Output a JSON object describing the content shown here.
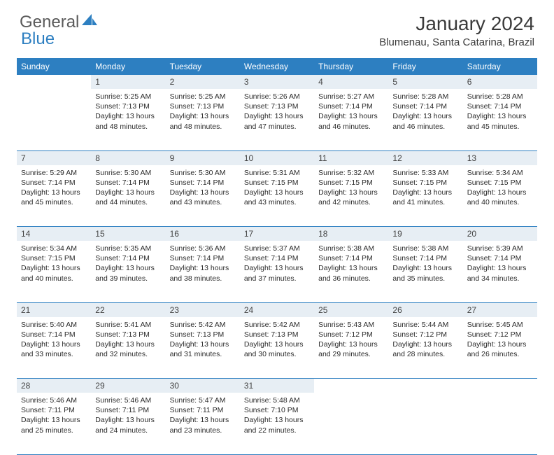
{
  "brand": {
    "general": "General",
    "blue": "Blue"
  },
  "title": "January 2024",
  "location": "Blumenau, Santa Catarina, Brazil",
  "colors": {
    "header_bg": "#2d7fc1",
    "header_text": "#ffffff",
    "daynum_bg": "#e7eef4",
    "row_divider": "#2d7fc1",
    "text": "#2b2b2b"
  },
  "weekdays": [
    "Sunday",
    "Monday",
    "Tuesday",
    "Wednesday",
    "Thursday",
    "Friday",
    "Saturday"
  ],
  "weeks": [
    [
      null,
      {
        "n": "1",
        "sr": "5:25 AM",
        "ss": "7:13 PM",
        "dl": "13 hours and 48 minutes."
      },
      {
        "n": "2",
        "sr": "5:25 AM",
        "ss": "7:13 PM",
        "dl": "13 hours and 48 minutes."
      },
      {
        "n": "3",
        "sr": "5:26 AM",
        "ss": "7:13 PM",
        "dl": "13 hours and 47 minutes."
      },
      {
        "n": "4",
        "sr": "5:27 AM",
        "ss": "7:14 PM",
        "dl": "13 hours and 46 minutes."
      },
      {
        "n": "5",
        "sr": "5:28 AM",
        "ss": "7:14 PM",
        "dl": "13 hours and 46 minutes."
      },
      {
        "n": "6",
        "sr": "5:28 AM",
        "ss": "7:14 PM",
        "dl": "13 hours and 45 minutes."
      }
    ],
    [
      {
        "n": "7",
        "sr": "5:29 AM",
        "ss": "7:14 PM",
        "dl": "13 hours and 45 minutes."
      },
      {
        "n": "8",
        "sr": "5:30 AM",
        "ss": "7:14 PM",
        "dl": "13 hours and 44 minutes."
      },
      {
        "n": "9",
        "sr": "5:30 AM",
        "ss": "7:14 PM",
        "dl": "13 hours and 43 minutes."
      },
      {
        "n": "10",
        "sr": "5:31 AM",
        "ss": "7:15 PM",
        "dl": "13 hours and 43 minutes."
      },
      {
        "n": "11",
        "sr": "5:32 AM",
        "ss": "7:15 PM",
        "dl": "13 hours and 42 minutes."
      },
      {
        "n": "12",
        "sr": "5:33 AM",
        "ss": "7:15 PM",
        "dl": "13 hours and 41 minutes."
      },
      {
        "n": "13",
        "sr": "5:34 AM",
        "ss": "7:15 PM",
        "dl": "13 hours and 40 minutes."
      }
    ],
    [
      {
        "n": "14",
        "sr": "5:34 AM",
        "ss": "7:15 PM",
        "dl": "13 hours and 40 minutes."
      },
      {
        "n": "15",
        "sr": "5:35 AM",
        "ss": "7:14 PM",
        "dl": "13 hours and 39 minutes."
      },
      {
        "n": "16",
        "sr": "5:36 AM",
        "ss": "7:14 PM",
        "dl": "13 hours and 38 minutes."
      },
      {
        "n": "17",
        "sr": "5:37 AM",
        "ss": "7:14 PM",
        "dl": "13 hours and 37 minutes."
      },
      {
        "n": "18",
        "sr": "5:38 AM",
        "ss": "7:14 PM",
        "dl": "13 hours and 36 minutes."
      },
      {
        "n": "19",
        "sr": "5:38 AM",
        "ss": "7:14 PM",
        "dl": "13 hours and 35 minutes."
      },
      {
        "n": "20",
        "sr": "5:39 AM",
        "ss": "7:14 PM",
        "dl": "13 hours and 34 minutes."
      }
    ],
    [
      {
        "n": "21",
        "sr": "5:40 AM",
        "ss": "7:14 PM",
        "dl": "13 hours and 33 minutes."
      },
      {
        "n": "22",
        "sr": "5:41 AM",
        "ss": "7:13 PM",
        "dl": "13 hours and 32 minutes."
      },
      {
        "n": "23",
        "sr": "5:42 AM",
        "ss": "7:13 PM",
        "dl": "13 hours and 31 minutes."
      },
      {
        "n": "24",
        "sr": "5:42 AM",
        "ss": "7:13 PM",
        "dl": "13 hours and 30 minutes."
      },
      {
        "n": "25",
        "sr": "5:43 AM",
        "ss": "7:12 PM",
        "dl": "13 hours and 29 minutes."
      },
      {
        "n": "26",
        "sr": "5:44 AM",
        "ss": "7:12 PM",
        "dl": "13 hours and 28 minutes."
      },
      {
        "n": "27",
        "sr": "5:45 AM",
        "ss": "7:12 PM",
        "dl": "13 hours and 26 minutes."
      }
    ],
    [
      {
        "n": "28",
        "sr": "5:46 AM",
        "ss": "7:11 PM",
        "dl": "13 hours and 25 minutes."
      },
      {
        "n": "29",
        "sr": "5:46 AM",
        "ss": "7:11 PM",
        "dl": "13 hours and 24 minutes."
      },
      {
        "n": "30",
        "sr": "5:47 AM",
        "ss": "7:11 PM",
        "dl": "13 hours and 23 minutes."
      },
      {
        "n": "31",
        "sr": "5:48 AM",
        "ss": "7:10 PM",
        "dl": "13 hours and 22 minutes."
      },
      null,
      null,
      null
    ]
  ],
  "labels": {
    "sunrise": "Sunrise:",
    "sunset": "Sunset:",
    "daylight": "Daylight:"
  }
}
